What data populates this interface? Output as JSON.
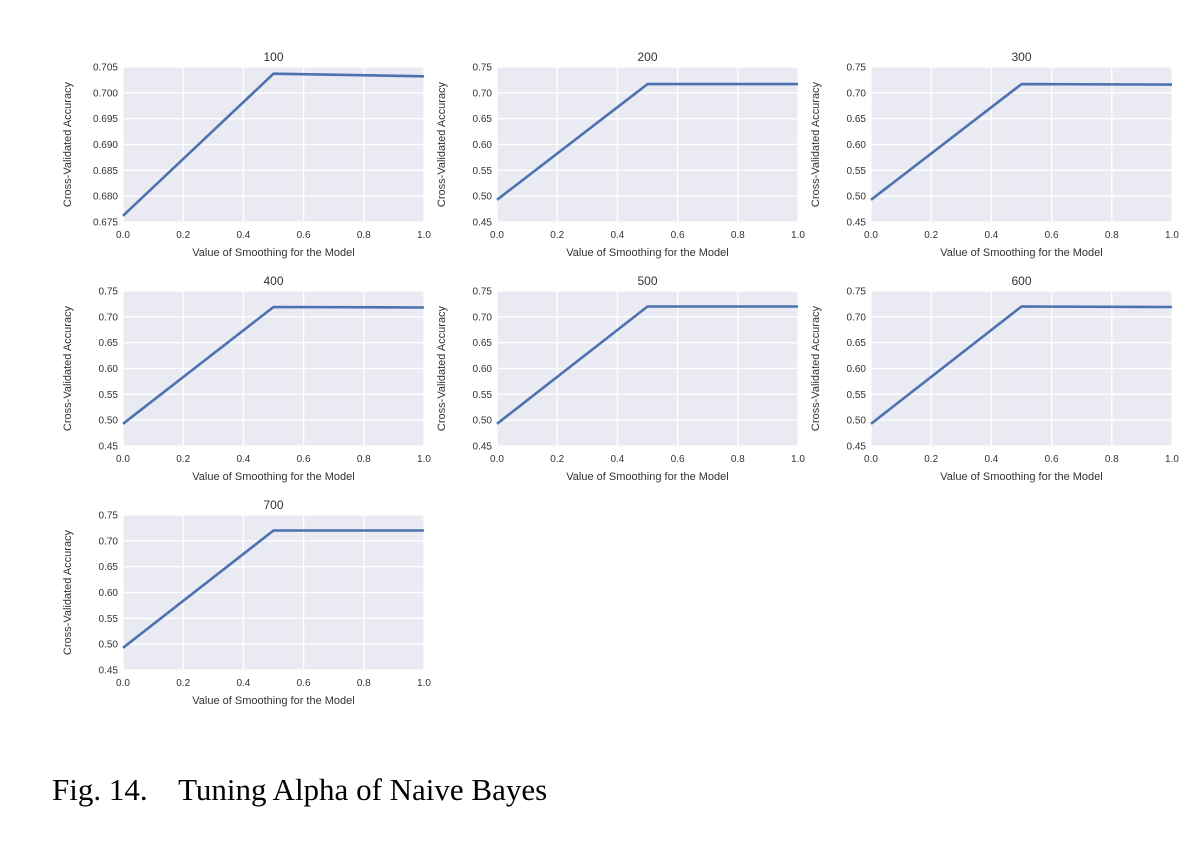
{
  "chart_data": [
    {
      "type": "line",
      "title": "100",
      "xlabel": "Value of Smoothing for the Model",
      "ylabel": "Cross-Validated Accuracy",
      "x": [
        0.0,
        0.5,
        1.0
      ],
      "y": [
        0.6762,
        0.7037,
        0.7032
      ],
      "xlim": [
        0.0,
        1.0
      ],
      "ylim": [
        0.675,
        0.705
      ],
      "xticks": [
        "0.0",
        "0.2",
        "0.4",
        "0.6",
        "0.8",
        "1.0"
      ],
      "yticks": [
        "0.675",
        "0.680",
        "0.685",
        "0.690",
        "0.695",
        "0.700",
        "0.705"
      ],
      "grid": true,
      "line_color": "#4C72B0",
      "background": "#EAEAF2"
    },
    {
      "type": "line",
      "title": "200",
      "xlabel": "Value of Smoothing for the Model",
      "ylabel": "Cross-Validated Accuracy",
      "x": [
        0.0,
        0.5,
        1.0
      ],
      "y": [
        0.493,
        0.717,
        0.717
      ],
      "xlim": [
        0.0,
        1.0
      ],
      "ylim": [
        0.45,
        0.75
      ],
      "xticks": [
        "0.0",
        "0.2",
        "0.4",
        "0.6",
        "0.8",
        "1.0"
      ],
      "yticks": [
        "0.45",
        "0.50",
        "0.55",
        "0.60",
        "0.65",
        "0.70",
        "0.75"
      ],
      "grid": true,
      "line_color": "#4C72B0",
      "background": "#EAEAF2"
    },
    {
      "type": "line",
      "title": "300",
      "xlabel": "Value of Smoothing for the Model",
      "ylabel": "Cross-Validated Accuracy",
      "x": [
        0.0,
        0.5,
        1.0
      ],
      "y": [
        0.493,
        0.717,
        0.716
      ],
      "xlim": [
        0.0,
        1.0
      ],
      "ylim": [
        0.45,
        0.75
      ],
      "xticks": [
        "0.0",
        "0.2",
        "0.4",
        "0.6",
        "0.8",
        "1.0"
      ],
      "yticks": [
        "0.45",
        "0.50",
        "0.55",
        "0.60",
        "0.65",
        "0.70",
        "0.75"
      ],
      "grid": true,
      "line_color": "#4C72B0",
      "background": "#EAEAF2"
    },
    {
      "type": "line",
      "title": "400",
      "xlabel": "Value of Smoothing for the Model",
      "ylabel": "Cross-Validated Accuracy",
      "x": [
        0.0,
        0.5,
        1.0
      ],
      "y": [
        0.493,
        0.719,
        0.718
      ],
      "xlim": [
        0.0,
        1.0
      ],
      "ylim": [
        0.45,
        0.75
      ],
      "xticks": [
        "0.0",
        "0.2",
        "0.4",
        "0.6",
        "0.8",
        "1.0"
      ],
      "yticks": [
        "0.45",
        "0.50",
        "0.55",
        "0.60",
        "0.65",
        "0.70",
        "0.75"
      ],
      "grid": true,
      "line_color": "#4C72B0",
      "background": "#EAEAF2"
    },
    {
      "type": "line",
      "title": "500",
      "xlabel": "Value of Smoothing for the Model",
      "ylabel": "Cross-Validated Accuracy",
      "x": [
        0.0,
        0.5,
        1.0
      ],
      "y": [
        0.493,
        0.72,
        0.72
      ],
      "xlim": [
        0.0,
        1.0
      ],
      "ylim": [
        0.45,
        0.75
      ],
      "xticks": [
        "0.0",
        "0.2",
        "0.4",
        "0.6",
        "0.8",
        "1.0"
      ],
      "yticks": [
        "0.45",
        "0.50",
        "0.55",
        "0.60",
        "0.65",
        "0.70",
        "0.75"
      ],
      "grid": true,
      "line_color": "#4C72B0",
      "background": "#EAEAF2"
    },
    {
      "type": "line",
      "title": "600",
      "xlabel": "Value of Smoothing for the Model",
      "ylabel": "Cross-Validated Accuracy",
      "x": [
        0.0,
        0.5,
        1.0
      ],
      "y": [
        0.493,
        0.72,
        0.719
      ],
      "xlim": [
        0.0,
        1.0
      ],
      "ylim": [
        0.45,
        0.75
      ],
      "xticks": [
        "0.0",
        "0.2",
        "0.4",
        "0.6",
        "0.8",
        "1.0"
      ],
      "yticks": [
        "0.45",
        "0.50",
        "0.55",
        "0.60",
        "0.65",
        "0.70",
        "0.75"
      ],
      "grid": true,
      "line_color": "#4C72B0",
      "background": "#EAEAF2"
    },
    {
      "type": "line",
      "title": "700",
      "xlabel": "Value of Smoothing for the Model",
      "ylabel": "Cross-Validated Accuracy",
      "x": [
        0.0,
        0.5,
        1.0
      ],
      "y": [
        0.493,
        0.72,
        0.72
      ],
      "xlim": [
        0.0,
        1.0
      ],
      "ylim": [
        0.45,
        0.75
      ],
      "xticks": [
        "0.0",
        "0.2",
        "0.4",
        "0.6",
        "0.8",
        "1.0"
      ],
      "yticks": [
        "0.45",
        "0.50",
        "0.55",
        "0.60",
        "0.65",
        "0.70",
        "0.75"
      ],
      "grid": true,
      "line_color": "#4C72B0",
      "background": "#EAEAF2"
    }
  ],
  "caption": {
    "label": "Fig. 14.",
    "text": "Tuning Alpha of Naive Bayes"
  }
}
